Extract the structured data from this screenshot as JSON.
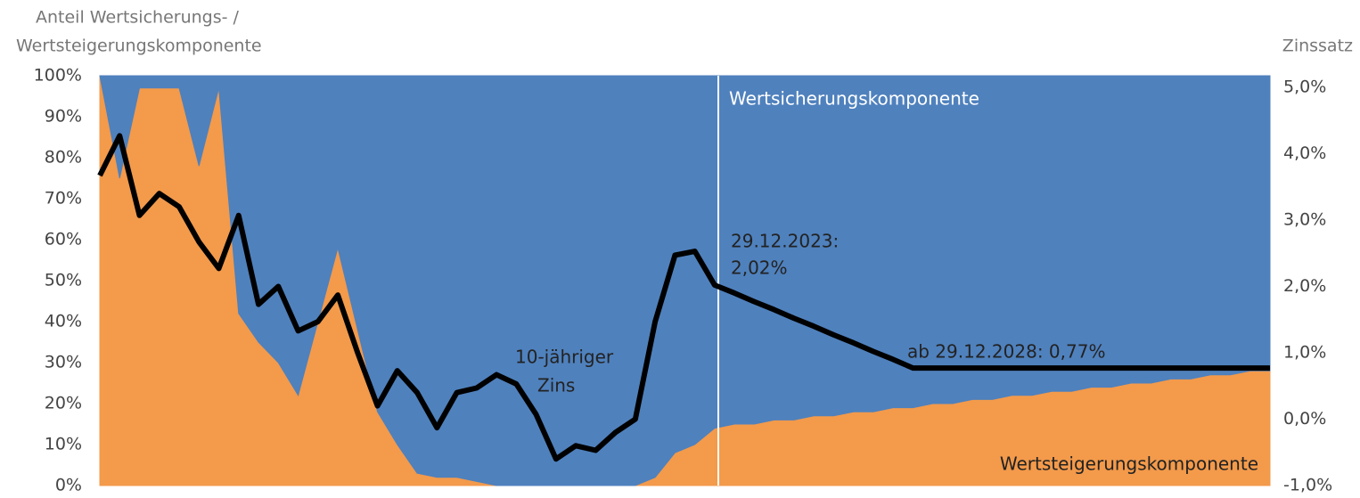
{
  "chart_data": {
    "type": "area_line",
    "title_lines": [
      "Anteil Wertsicherungs- /",
      "Wertsteigerungskomponente"
    ],
    "y2_title": "Zinssatz",
    "categories": [
      null,
      null,
      null,
      null,
      null,
      null,
      null,
      null,
      null,
      null,
      null,
      null,
      null,
      null,
      null,
      null,
      null,
      null,
      null,
      null,
      null,
      null,
      null,
      null,
      null,
      null,
      null,
      null,
      null,
      null,
      null,
      null,
      null,
      null,
      null,
      null,
      null,
      null,
      null,
      null,
      null,
      null,
      null,
      null,
      null,
      null,
      null,
      null,
      null,
      null,
      null,
      null,
      null,
      null,
      null,
      null,
      null,
      null,
      null,
      null
    ],
    "series": [
      {
        "name": "Wertsteigerungskomponente",
        "color": "#f39a4b",
        "stack": true,
        "values": [
          100,
          75,
          97,
          97,
          97,
          78,
          97,
          42,
          35,
          30,
          22,
          40,
          58,
          38,
          18,
          10,
          3,
          2,
          2,
          1,
          0,
          0,
          0,
          0,
          0,
          0,
          0,
          0,
          2,
          8,
          10,
          14,
          15,
          15,
          16,
          16,
          17,
          17,
          18,
          18,
          19,
          19,
          20,
          20,
          21,
          21,
          22,
          22,
          23,
          23,
          24,
          24,
          25,
          25,
          26,
          26,
          27,
          27,
          28,
          28
        ]
      },
      {
        "name": "Wertsicherungskomponente",
        "color": "#4f81bd",
        "stack": true,
        "values": [
          0,
          25,
          3,
          3,
          3,
          22,
          3,
          58,
          65,
          70,
          78,
          60,
          42,
          62,
          82,
          90,
          97,
          98,
          98,
          99,
          100,
          100,
          100,
          100,
          100,
          100,
          100,
          100,
          98,
          92,
          90,
          86,
          85,
          85,
          84,
          84,
          83,
          83,
          82,
          82,
          81,
          81,
          80,
          80,
          79,
          79,
          78,
          78,
          77,
          77,
          76,
          76,
          75,
          75,
          74,
          74,
          73,
          73,
          72,
          72
        ]
      },
      {
        "color": "#000000",
        "axis": "y2",
        "line": true,
        "values": [
          3.67,
          4.27,
          3.07,
          3.4,
          3.2,
          2.67,
          2.27,
          3.07,
          1.73,
          2.0,
          1.33,
          1.47,
          1.87,
          1.0,
          0.2,
          0.73,
          0.4,
          -0.13,
          0.4,
          0.47,
          0.67,
          0.53,
          0.07,
          -0.6,
          -0.4,
          -0.47,
          -0.2,
          0.0,
          1.47,
          2.47,
          2.53,
          2.02,
          1.9,
          1.77,
          1.65,
          1.52,
          1.4,
          1.27,
          1.15,
          1.02,
          0.9,
          0.77,
          0.77,
          0.77,
          0.77,
          0.77,
          0.77,
          0.77,
          0.77,
          0.77,
          0.77,
          0.77,
          0.77,
          0.77,
          0.77,
          0.77,
          0.77,
          0.77,
          0.77,
          0.77
        ]
      }
    ],
    "annotations": [
      "29.12.2023:",
      "2,02%",
      "ab 29.12.2028: 0,77%",
      "10-jähriger",
      "Zins"
    ],
    "ylim": [
      0,
      100
    ],
    "yticks": [
      {
        "value": 0,
        "label": "0%"
      },
      {
        "value": 10,
        "label": "10%"
      },
      {
        "value": 20,
        "label": "20%"
      },
      {
        "value": 30,
        "label": "30%"
      },
      {
        "value": 40,
        "label": "40%"
      },
      {
        "value": 50,
        "label": "50%"
      },
      {
        "value": 60,
        "label": "60%"
      },
      {
        "value": 70,
        "label": "70%"
      },
      {
        "value": 80,
        "label": "80%"
      },
      {
        "value": 90,
        "label": "90%"
      },
      {
        "value": 100,
        "label": "100%"
      }
    ],
    "y2lim": [
      -1,
      5
    ],
    "y2ticks": [
      {
        "value": -1,
        "label": "-1,0%"
      },
      {
        "value": 0,
        "label": "0,0%"
      },
      {
        "value": 1,
        "label": "1,0%"
      },
      {
        "value": 2,
        "label": "2,0%"
      },
      {
        "value": 3,
        "label": "3,0%"
      },
      {
        "value": 4,
        "label": "4,0%"
      },
      {
        "value": 5,
        "label": "5,0%"
      }
    ]
  }
}
